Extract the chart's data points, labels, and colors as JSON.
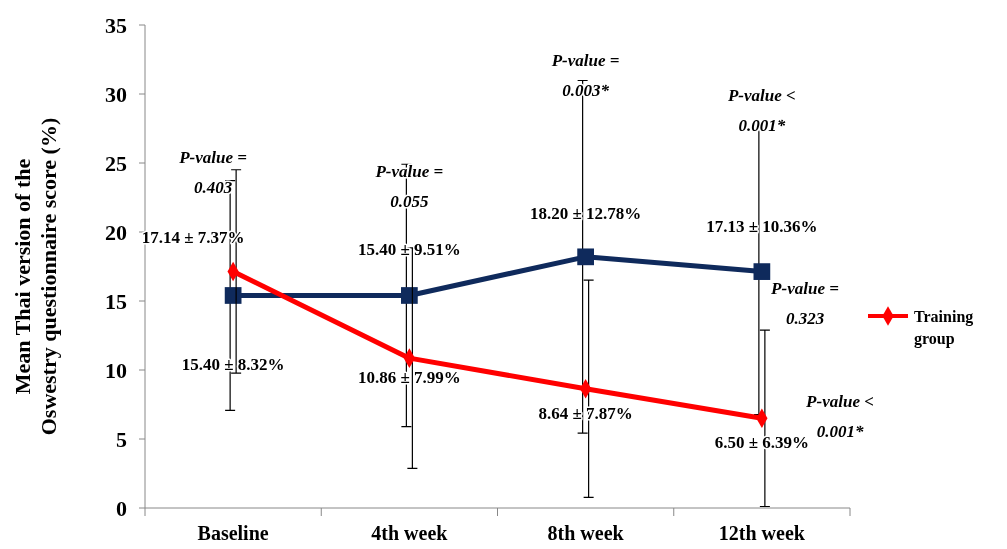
{
  "chart_data": {
    "type": "line",
    "ylabel": "Mean Thai version of the Oswestry questionnaire score (%)",
    "categories": [
      "Baseline",
      "4th week",
      "8th week",
      "12th week"
    ],
    "ylim": [
      0,
      35
    ],
    "yticks": [
      0,
      5,
      10,
      15,
      20,
      25,
      30,
      35
    ],
    "grid": false,
    "legend": "right",
    "series": [
      {
        "color": "#0f2a5c",
        "marker": "square",
        "values": [
          15.4,
          15.4,
          18.2,
          17.13
        ],
        "errors": [
          8.32,
          9.51,
          12.78,
          10.36
        ],
        "value_labels": [
          "15.40 ± 8.32%",
          "15.40 ± 9.51%",
          "18.20 ± 12.78%",
          "17.13 ± 10.36%"
        ]
      },
      {
        "name": "Training group",
        "color": "#ff0000",
        "marker": "diamond",
        "values": [
          17.14,
          10.86,
          8.64,
          6.5
        ],
        "errors": [
          7.37,
          7.99,
          7.87,
          6.39
        ],
        "value_labels": [
          "17.14 ± 7.37%",
          "10.86 ± 7.99%",
          "8.64 ± 7.87%",
          "6.50 ± 6.39%"
        ]
      }
    ],
    "annotations": [
      "P-value = 0.403",
      "P-value = 0.055",
      "P-value = 0.003*",
      "P-value < 0.001*",
      "P-value = 0.323",
      "P-value < 0.001*"
    ]
  }
}
